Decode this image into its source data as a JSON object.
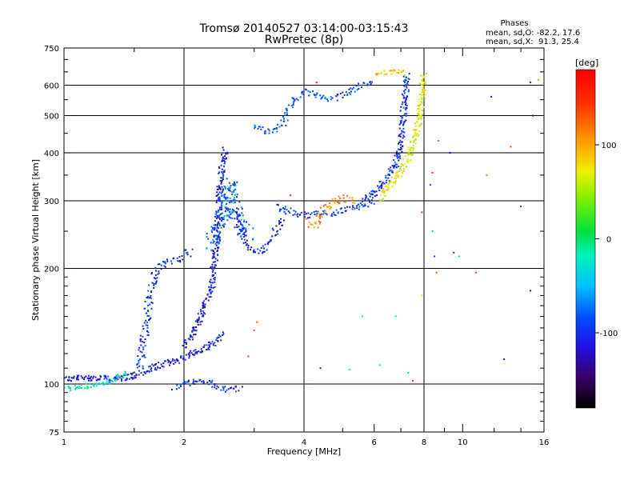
{
  "chart_data": {
    "type": "scatter",
    "title": "Tromsø 20140527 03:14:00-03:15:43",
    "subtitle": "RwPretec (8p)",
    "stats": {
      "heading": "Phases",
      "line_o": "mean, sd,O: -82.2, 17.6",
      "line_x": "mean, sd,X:  91.3, 25.4"
    },
    "xlabel": "Frequency [MHz]",
    "ylabel": "Stationary phase Virtual Height [km]",
    "x_scale": "log",
    "y_scale": "log",
    "xlim": [
      1,
      16
    ],
    "ylim": [
      75,
      750
    ],
    "x_ticks": [
      1,
      2,
      4,
      6,
      8,
      10,
      16
    ],
    "x_tick_labels": [
      "1",
      "2",
      "4",
      "6",
      "8",
      "10",
      "16"
    ],
    "x_grid": [
      2,
      4,
      8
    ],
    "y_ticks": [
      75,
      100,
      200,
      300,
      400,
      500,
      600,
      750
    ],
    "y_tick_labels": [
      "75",
      "100",
      "200",
      "300",
      "400",
      "500",
      "600",
      "750"
    ],
    "y_grid": [
      100,
      200,
      300,
      400,
      500,
      600
    ],
    "grid": true,
    "colorbar": {
      "label": "[deg]",
      "range": [
        -180,
        180
      ],
      "ticks": [
        100,
        0,
        -100
      ],
      "tick_labels": [
        "100",
        "0",
        "-100"
      ]
    },
    "traces": [
      {
        "phase": -110,
        "spread": 4,
        "density": 3,
        "points": [
          [
            1.0,
            103
          ],
          [
            1.15,
            104
          ],
          [
            1.3,
            103
          ],
          [
            1.45,
            104
          ],
          [
            1.6,
            108
          ],
          [
            1.75,
            112
          ],
          [
            1.9,
            115
          ],
          [
            2.1,
            120
          ],
          [
            2.3,
            125
          ],
          [
            2.5,
            135
          ]
        ]
      },
      {
        "phase": -20,
        "spread": 3,
        "density": 2,
        "points": [
          [
            1.0,
            97
          ],
          [
            1.1,
            98
          ],
          [
            1.25,
            100
          ],
          [
            1.35,
            103
          ],
          [
            1.45,
            107
          ]
        ]
      },
      {
        "phase": -100,
        "spread": 5,
        "density": 2,
        "points": [
          [
            1.55,
            110
          ],
          [
            1.6,
            140
          ],
          [
            1.65,
            175
          ],
          [
            1.7,
            195
          ],
          [
            1.75,
            205
          ],
          [
            1.85,
            210
          ],
          [
            2.0,
            215
          ],
          [
            2.1,
            222
          ]
        ]
      },
      {
        "phase": -110,
        "spread": 4,
        "density": 3,
        "points": [
          [
            2.0,
            125
          ],
          [
            2.15,
            140
          ],
          [
            2.25,
            160
          ],
          [
            2.35,
            180
          ],
          [
            2.4,
            220
          ],
          [
            2.45,
            300
          ],
          [
            2.5,
            380
          ],
          [
            2.55,
            410
          ]
        ]
      },
      {
        "phase": -80,
        "spread": 9,
        "density": 4,
        "points": [
          [
            2.35,
            230
          ],
          [
            2.45,
            260
          ],
          [
            2.55,
            290
          ],
          [
            2.6,
            330
          ],
          [
            2.65,
            300
          ],
          [
            2.7,
            270
          ],
          [
            2.8,
            255
          ],
          [
            2.9,
            245
          ]
        ]
      },
      {
        "phase": -110,
        "spread": 4,
        "density": 2,
        "points": [
          [
            2.7,
            280
          ],
          [
            2.8,
            245
          ],
          [
            2.9,
            228
          ],
          [
            3.0,
            222
          ],
          [
            3.15,
            222
          ],
          [
            3.3,
            235
          ],
          [
            3.45,
            260
          ],
          [
            3.55,
            275
          ]
        ]
      },
      {
        "phase": -95,
        "spread": 4,
        "density": 2,
        "points": [
          [
            3.4,
            290
          ],
          [
            3.6,
            285
          ],
          [
            3.8,
            278
          ],
          [
            4.0,
            275
          ],
          [
            4.4,
            277
          ],
          [
            4.8,
            280
          ],
          [
            5.2,
            285
          ],
          [
            5.6,
            292
          ],
          [
            6.0,
            300
          ]
        ]
      },
      {
        "phase": 110,
        "spread": 5,
        "density": 2,
        "points": [
          [
            4.1,
            265
          ],
          [
            4.3,
            258
          ],
          [
            4.5,
            285
          ],
          [
            4.8,
            300
          ],
          [
            5.1,
            305
          ],
          [
            5.4,
            300
          ]
        ]
      },
      {
        "phase": -90,
        "spread": 4,
        "density": 2,
        "points": [
          [
            3.0,
            465
          ],
          [
            3.2,
            455
          ],
          [
            3.4,
            460
          ],
          [
            3.55,
            480
          ],
          [
            3.7,
            530
          ],
          [
            3.9,
            570
          ],
          [
            4.1,
            575
          ],
          [
            4.3,
            560
          ],
          [
            4.6,
            555
          ],
          [
            4.9,
            560
          ],
          [
            5.2,
            580
          ],
          [
            5.6,
            600
          ],
          [
            6.0,
            615
          ]
        ]
      },
      {
        "phase": -100,
        "spread": 4,
        "density": 3,
        "points": [
          [
            5.6,
            300
          ],
          [
            6.0,
            315
          ],
          [
            6.4,
            340
          ],
          [
            6.8,
            370
          ],
          [
            7.0,
            420
          ],
          [
            7.1,
            500
          ],
          [
            7.2,
            580
          ],
          [
            7.25,
            640
          ]
        ]
      },
      {
        "phase": 70,
        "spread": 4,
        "density": 3,
        "points": [
          [
            6.2,
            305
          ],
          [
            6.6,
            330
          ],
          [
            7.0,
            360
          ],
          [
            7.4,
            400
          ],
          [
            7.7,
            460
          ],
          [
            7.85,
            520
          ],
          [
            7.95,
            590
          ],
          [
            8.0,
            640
          ]
        ]
      },
      {
        "phase": 90,
        "spread": 3,
        "density": 2,
        "points": [
          [
            6.0,
            640
          ],
          [
            6.4,
            648
          ],
          [
            6.8,
            650
          ],
          [
            7.2,
            645
          ]
        ]
      },
      {
        "phase": -100,
        "spread": 4,
        "density": 2,
        "points": [
          [
            1.9,
            98
          ],
          [
            2.05,
            100
          ],
          [
            2.2,
            103
          ],
          [
            2.4,
            99
          ],
          [
            2.6,
            97
          ],
          [
            2.8,
            98
          ]
        ]
      }
    ],
    "scatter_points": [
      [
        3.0,
        138,
        130
      ],
      [
        3.05,
        145,
        135
      ],
      [
        2.9,
        118,
        145
      ],
      [
        4.4,
        110,
        -110
      ],
      [
        4.2,
        100,
        -60
      ],
      [
        5.2,
        109,
        -20
      ],
      [
        6.2,
        112,
        -20
      ],
      [
        7.3,
        107,
        -30
      ],
      [
        7.5,
        102,
        150
      ],
      [
        7.9,
        280,
        150
      ],
      [
        8.4,
        250,
        -40
      ],
      [
        8.5,
        215,
        -100
      ],
      [
        8.6,
        195,
        130
      ],
      [
        9.5,
        220,
        -110
      ],
      [
        9.8,
        215,
        -40
      ],
      [
        10.8,
        195,
        140
      ],
      [
        11.5,
        350,
        120
      ],
      [
        12.7,
        116,
        -120
      ],
      [
        13.2,
        415,
        130
      ],
      [
        14.0,
        290,
        -90
      ],
      [
        14.8,
        610,
        -110
      ],
      [
        15.0,
        500,
        -120
      ],
      [
        14.8,
        175,
        -120
      ],
      [
        15.5,
        620,
        110
      ],
      [
        11.8,
        560,
        -120
      ],
      [
        8.3,
        330,
        -80
      ],
      [
        8.4,
        355,
        150
      ],
      [
        4.3,
        610,
        170
      ],
      [
        3.7,
        310,
        160
      ],
      [
        5.6,
        150,
        -30
      ],
      [
        6.8,
        150,
        -20
      ],
      [
        7.9,
        170,
        60
      ],
      [
        9.3,
        400,
        -120
      ],
      [
        8.7,
        430,
        130
      ]
    ]
  }
}
